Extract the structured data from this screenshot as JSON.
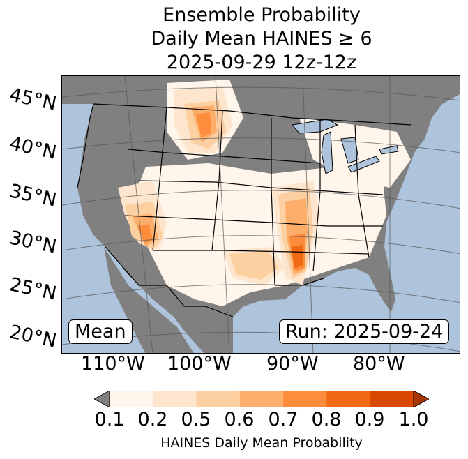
{
  "title": {
    "line1": "Ensemble Probability",
    "line2": "Daily Mean HAINES ≥ 6",
    "line3": "2025-09-29 12z-12z"
  },
  "map": {
    "lat_labels": [
      "45°N",
      "40°N",
      "35°N",
      "30°N",
      "25°N",
      "20°N"
    ],
    "lon_labels": [
      "110°W",
      "100°W",
      "90°W",
      "80°W"
    ],
    "stat_label": "Mean",
    "run_label": "Run: 2025-09-24",
    "colors": {
      "ocean": "#aec3dc",
      "below_min": "#808080",
      "border": "#000000",
      "grid": "#555555"
    }
  },
  "colorbar": {
    "ticks": [
      "0.1",
      "0.2",
      "0.5",
      "0.6",
      "0.7",
      "0.8",
      "0.9",
      "1.0"
    ],
    "colors": [
      "#fff5eb",
      "#fee6ce",
      "#fdd0a2",
      "#fdae6b",
      "#fd8d3c",
      "#f16913",
      "#d94801",
      "#a63603"
    ],
    "under_color": "#808080",
    "label": "HAINES Daily Mean Probability"
  }
}
